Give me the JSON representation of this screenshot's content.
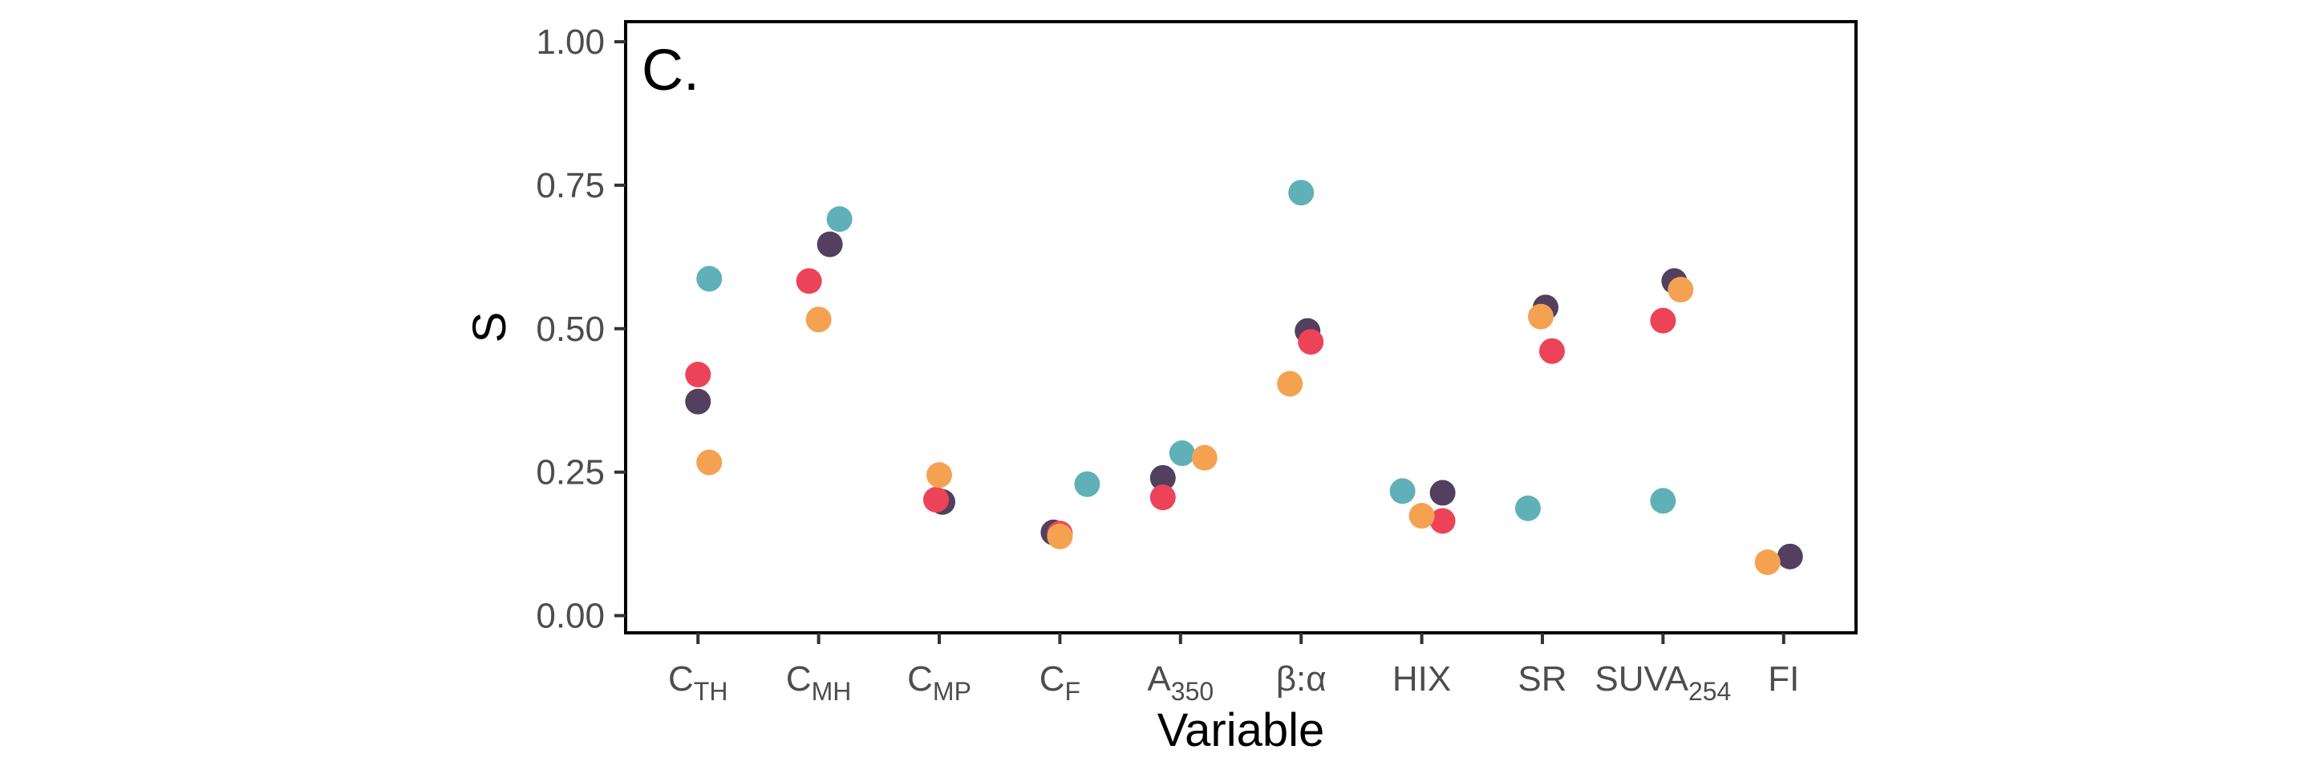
{
  "chart_data": {
    "type": "scatter",
    "panel_label": "C.",
    "xlabel": "Variable",
    "ylabel": "S",
    "ylim": [
      -0.03,
      1.035
    ],
    "y_ticks": [
      "0.00",
      "0.25",
      "0.50",
      "0.75",
      "1.00"
    ],
    "y_tick_values": [
      0,
      0.25,
      0.5,
      0.75,
      1.0
    ],
    "categories": [
      {
        "base": "C",
        "sub": "TH"
      },
      {
        "base": "C",
        "sub": "MH"
      },
      {
        "base": "C",
        "sub": "MP"
      },
      {
        "base": "C",
        "sub": "F"
      },
      {
        "base": "A",
        "sub": "350"
      },
      {
        "base": "β:α",
        "sub": ""
      },
      {
        "base": "HIX",
        "sub": ""
      },
      {
        "base": "SR",
        "sub": ""
      },
      {
        "base": "SUVA",
        "sub": "254"
      },
      {
        "base": "FI",
        "sub": ""
      }
    ],
    "grid": false,
    "legend": "none",
    "series": [
      {
        "color": "#5fb1b7",
        "points": [
          [
            1,
            0.587
          ],
          [
            2,
            0.691
          ],
          [
            4,
            0.229
          ],
          [
            5,
            0.283
          ],
          [
            6,
            0.737
          ],
          [
            7,
            0.217
          ],
          [
            8,
            0.187
          ],
          [
            9,
            0.2
          ]
        ]
      },
      {
        "color": "#533f5e",
        "points": [
          [
            1,
            0.373
          ],
          [
            2,
            0.647
          ],
          [
            3,
            0.198
          ],
          [
            4,
            0.145
          ],
          [
            5,
            0.24
          ],
          [
            6,
            0.496
          ],
          [
            7,
            0.214
          ],
          [
            8,
            0.537
          ],
          [
            9,
            0.583
          ],
          [
            10,
            0.103
          ]
        ]
      },
      {
        "color": "#ed4358",
        "points": [
          [
            1,
            0.42
          ],
          [
            2,
            0.583
          ],
          [
            3,
            0.202
          ],
          [
            4,
            0.143
          ],
          [
            5,
            0.206
          ],
          [
            6,
            0.477
          ],
          [
            7,
            0.165
          ],
          [
            8,
            0.461
          ],
          [
            9,
            0.514
          ]
        ]
      },
      {
        "color": "#f4a252",
        "points": [
          [
            1,
            0.267
          ],
          [
            2,
            0.516
          ],
          [
            3,
            0.245
          ],
          [
            4,
            0.138
          ],
          [
            5,
            0.275
          ],
          [
            6,
            0.404
          ],
          [
            7,
            0.174
          ],
          [
            8,
            0.521
          ],
          [
            9,
            0.568
          ],
          [
            10,
            0.093
          ]
        ]
      }
    ]
  }
}
